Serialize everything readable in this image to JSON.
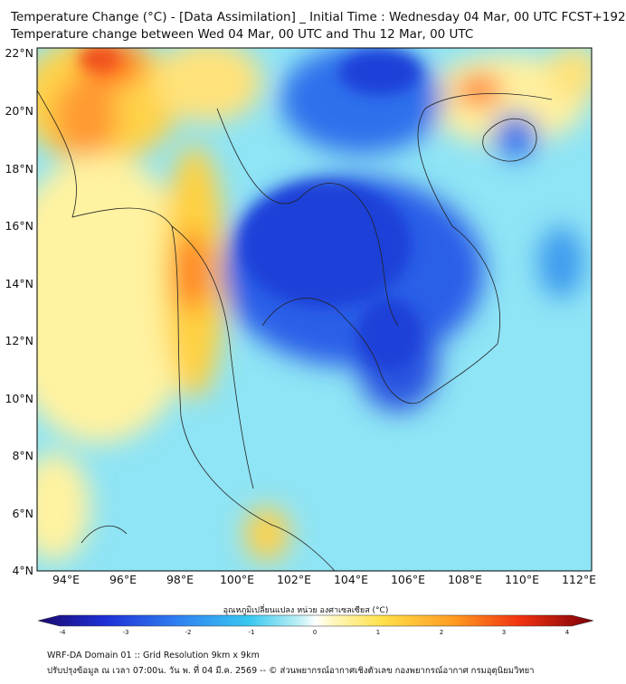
{
  "title_line1": "Temperature Change (°C) - [Data Assimilation] _ Initial Time : Wednesday 04 Mar, 00 UTC FCST+192",
  "title_line2": "Temperature change between Wed 04 Mar, 00 UTC and Thu 12 Mar, 00 UTC",
  "map": {
    "lat_ticks": [
      "22°N",
      "20°N",
      "18°N",
      "16°N",
      "14°N",
      "12°N",
      "10°N",
      "8°N",
      "6°N",
      "4°N"
    ],
    "lon_ticks": [
      "94°E",
      "96°E",
      "98°E",
      "100°E",
      "102°E",
      "104°E",
      "106°E",
      "108°E",
      "110°E",
      "112°E"
    ],
    "extent": {
      "lon_min": 93.0,
      "lon_max": 112.5,
      "lat_min": 4.0,
      "lat_max": 22.2
    },
    "field": "temperature change",
    "units": "°C"
  },
  "colorbar": {
    "label": "อุณหภูมิเปลี่ยนแปลง หน่วย องศาเซลเซียส (°C)",
    "ticks": [
      "-4",
      "-3",
      "-2",
      "-1",
      "0",
      "1",
      "2",
      "3",
      "4"
    ],
    "min": -4,
    "max": 4
  },
  "footer_line1": "WRF-DA Domain 01 :: Grid Resolution 9km x 9km",
  "footer_line2": "ปรับปรุงข้อมูล ณ เวลา 07:00น. วัน พ. ที่ 04 มี.ค. 2569 -- © ส่วนพยากรณ์อากาศเชิงตัวเลข กองพยากรณ์อากาศ กรมอุตุนิยมวิทยา"
}
